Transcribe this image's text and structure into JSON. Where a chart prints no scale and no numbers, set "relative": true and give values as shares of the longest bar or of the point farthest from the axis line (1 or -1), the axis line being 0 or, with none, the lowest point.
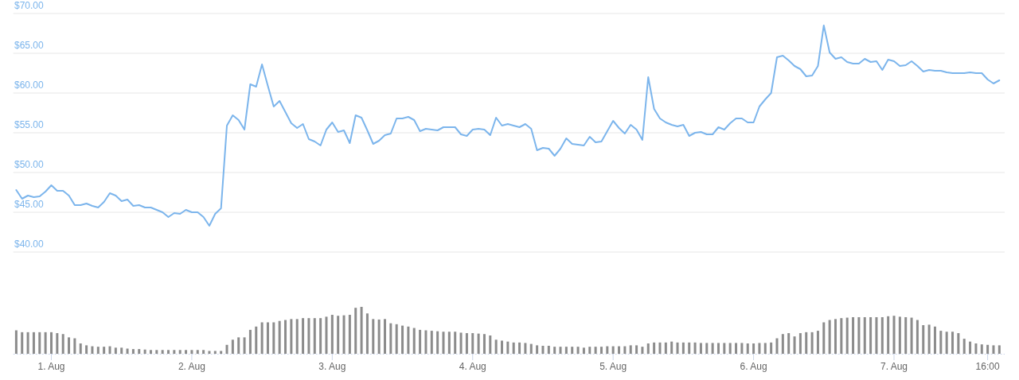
{
  "chart_data": [
    {
      "type": "line",
      "ylim": [
        40,
        70
      ],
      "yticks": [
        {
          "value": 40,
          "label": "$40.00"
        },
        {
          "value": 45,
          "label": "$45.00"
        },
        {
          "value": 50,
          "label": "$50.00"
        },
        {
          "value": 55,
          "label": "$55.00"
        },
        {
          "value": 60,
          "label": "$60.00"
        },
        {
          "value": 65,
          "label": "$65.00"
        },
        {
          "value": 70,
          "label": "$70.00"
        }
      ],
      "grid": "y",
      "tick_labels": "y",
      "categories": [
        null,
        null,
        null,
        null,
        null,
        null,
        null,
        null,
        null,
        null,
        null,
        null,
        null,
        null,
        null,
        null,
        null,
        null,
        null,
        null,
        null,
        null,
        null,
        null,
        null,
        null,
        null,
        null,
        null,
        null,
        null,
        null,
        null,
        null,
        null,
        null,
        null,
        null,
        null,
        null,
        null,
        null,
        null,
        null,
        null,
        null,
        null,
        null,
        null,
        null,
        null,
        null,
        null,
        null,
        null,
        null,
        null,
        null,
        null,
        null,
        null,
        null,
        null,
        null,
        null,
        null,
        null,
        null,
        null,
        null,
        null,
        null,
        null,
        null,
        null,
        null,
        null,
        null,
        null,
        null,
        null,
        null,
        null,
        null,
        null,
        null,
        null,
        null,
        null,
        null,
        null,
        null,
        null,
        null,
        null,
        null,
        null,
        null,
        null,
        null,
        null,
        null,
        null,
        null,
        null,
        null,
        null,
        null,
        null,
        null,
        null,
        null,
        null,
        null,
        null,
        null,
        null,
        null,
        null,
        null,
        null,
        null,
        null,
        null,
        null,
        null,
        null,
        null,
        null,
        null,
        null,
        null,
        null,
        null,
        null,
        null,
        null,
        null,
        null,
        null,
        null,
        null,
        null,
        null,
        null,
        null,
        null,
        null,
        null,
        null,
        null,
        null,
        null,
        null,
        null,
        null,
        null,
        null,
        null,
        null,
        null,
        null,
        null,
        null,
        null,
        null,
        null,
        null,
        null
      ],
      "series": [
        {
          "color": "#7cb5ec",
          "values": [
            47.8,
            46.7,
            47.1,
            46.9,
            47.0,
            47.6,
            48.4,
            47.7,
            47.7,
            47.1,
            45.9,
            45.9,
            46.1,
            45.8,
            45.6,
            46.3,
            47.4,
            47.1,
            46.4,
            46.6,
            45.8,
            45.9,
            45.6,
            45.6,
            45.3,
            45.0,
            44.4,
            44.9,
            44.8,
            45.3,
            45.0,
            45.0,
            44.4,
            43.3,
            44.8,
            45.5,
            55.9,
            57.2,
            56.6,
            55.4,
            61.1,
            60.8,
            63.6,
            60.9,
            58.3,
            59.0,
            57.6,
            56.2,
            55.6,
            56.1,
            54.2,
            53.9,
            53.4,
            55.4,
            56.3,
            55.1,
            55.3,
            53.7,
            57.2,
            56.9,
            55.3,
            53.6,
            54.0,
            54.7,
            54.9,
            56.8,
            56.8,
            57.0,
            56.6,
            55.2,
            55.5,
            55.4,
            55.3,
            55.7,
            55.7,
            55.7,
            54.8,
            54.6,
            55.4,
            55.5,
            55.4,
            54.7,
            56.9,
            55.9,
            56.1,
            55.9,
            55.7,
            56.1,
            55.5,
            52.8,
            53.1,
            53.0,
            52.1,
            53.0,
            54.3,
            53.6,
            53.5,
            53.4,
            54.5,
            53.8,
            53.9,
            55.2,
            56.5,
            55.6,
            54.9,
            56.0,
            55.4,
            54.1,
            62.0,
            58.0,
            56.8,
            56.3,
            56.0,
            55.8,
            56.0,
            54.6,
            55.0,
            55.1,
            54.8,
            54.8,
            55.7,
            55.4,
            56.2,
            56.8,
            56.8,
            56.3,
            56.3,
            58.3,
            59.2,
            60.0,
            64.5,
            64.7,
            64.1,
            63.4,
            63.0,
            62.1,
            62.2,
            63.4,
            68.5,
            65.1,
            64.3,
            64.5,
            63.9,
            63.7,
            63.7,
            64.3,
            63.9,
            64.0,
            62.9,
            64.2,
            64.0,
            63.4,
            63.5,
            64.0,
            63.4,
            62.7,
            62.9,
            62.8,
            62.8,
            62.6,
            62.5,
            62.5,
            62.5,
            62.6,
            62.5,
            62.5,
            61.7,
            61.2,
            61.6
          ]
        }
      ]
    },
    {
      "type": "bar",
      "relative": true,
      "tick_labels": "x",
      "categories": [
        null,
        null,
        null,
        null,
        null,
        null,
        "1. Aug",
        null,
        null,
        null,
        null,
        null,
        null,
        null,
        null,
        null,
        null,
        null,
        null,
        null,
        null,
        null,
        null,
        null,
        null,
        null,
        null,
        null,
        null,
        null,
        "2. Aug",
        null,
        null,
        null,
        null,
        null,
        null,
        null,
        null,
        null,
        null,
        null,
        null,
        null,
        null,
        null,
        null,
        null,
        null,
        null,
        null,
        null,
        null,
        null,
        "3. Aug",
        null,
        null,
        null,
        null,
        null,
        null,
        null,
        null,
        null,
        null,
        null,
        null,
        null,
        null,
        null,
        null,
        null,
        null,
        null,
        null,
        null,
        null,
        null,
        "4. Aug",
        null,
        null,
        null,
        null,
        null,
        null,
        null,
        null,
        null,
        null,
        null,
        null,
        null,
        null,
        null,
        null,
        null,
        null,
        null,
        null,
        null,
        null,
        null,
        "5. Aug",
        null,
        null,
        null,
        null,
        null,
        null,
        null,
        null,
        null,
        null,
        null,
        null,
        null,
        null,
        null,
        null,
        null,
        null,
        null,
        null,
        null,
        null,
        null,
        "6. Aug",
        null,
        null,
        null,
        null,
        null,
        null,
        null,
        null,
        null,
        null,
        null,
        null,
        null,
        null,
        null,
        null,
        null,
        null,
        null,
        null,
        null,
        null,
        null,
        "7. Aug",
        null,
        null,
        null,
        null,
        null,
        null,
        null,
        null,
        null,
        null,
        null,
        null,
        null,
        null,
        null,
        "16:00",
        null,
        null
      ],
      "series": [
        {
          "color": "#8c8c8c",
          "values": [
            0.5,
            0.46,
            0.46,
            0.46,
            0.46,
            0.46,
            0.46,
            0.44,
            0.42,
            0.35,
            0.33,
            0.22,
            0.18,
            0.16,
            0.15,
            0.15,
            0.16,
            0.13,
            0.13,
            0.11,
            0.1,
            0.1,
            0.09,
            0.08,
            0.08,
            0.08,
            0.08,
            0.08,
            0.08,
            0.08,
            0.08,
            0.08,
            0.08,
            0.06,
            0.06,
            0.06,
            0.19,
            0.3,
            0.35,
            0.35,
            0.51,
            0.58,
            0.67,
            0.67,
            0.67,
            0.7,
            0.72,
            0.74,
            0.74,
            0.76,
            0.76,
            0.76,
            0.76,
            0.79,
            0.83,
            0.81,
            0.82,
            0.83,
            0.98,
            1,
            0.86,
            0.74,
            0.73,
            0.74,
            0.65,
            0.63,
            0.6,
            0.58,
            0.55,
            0.51,
            0.5,
            0.49,
            0.48,
            0.47,
            0.47,
            0.47,
            0.45,
            0.44,
            0.44,
            0.43,
            0.42,
            0.39,
            0.3,
            0.28,
            0.26,
            0.24,
            0.24,
            0.23,
            0.21,
            0.18,
            0.17,
            0.17,
            0.15,
            0.15,
            0.15,
            0.15,
            0.15,
            0.13,
            0.15,
            0.15,
            0.15,
            0.16,
            0.16,
            0.16,
            0.16,
            0.18,
            0.18,
            0.15,
            0.22,
            0.24,
            0.24,
            0.24,
            0.26,
            0.24,
            0.24,
            0.24,
            0.24,
            0.23,
            0.23,
            0.23,
            0.23,
            0.23,
            0.23,
            0.23,
            0.23,
            0.22,
            0.22,
            0.23,
            0.23,
            0.24,
            0.33,
            0.42,
            0.44,
            0.37,
            0.44,
            0.46,
            0.46,
            0.49,
            0.67,
            0.72,
            0.74,
            0.76,
            0.77,
            0.78,
            0.78,
            0.78,
            0.78,
            0.78,
            0.78,
            0.8,
            0.81,
            0.79,
            0.78,
            0.77,
            0.72,
            0.61,
            0.62,
            0.58,
            0.49,
            0.47,
            0.47,
            0.44,
            0.32,
            0.26,
            0.22,
            0.2,
            0.19,
            0.18,
            0.18
          ]
        }
      ]
    }
  ]
}
